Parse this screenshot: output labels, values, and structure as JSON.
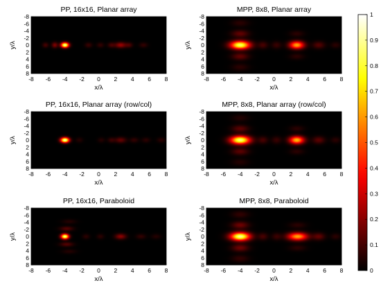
{
  "chart_data": {
    "type": "heatmap",
    "colormap": "hot",
    "colorbar": {
      "range": [
        0,
        1
      ],
      "ticks": [
        "0",
        "0.1",
        "0.2",
        "0.3",
        "0.4",
        "0.5",
        "0.6",
        "0.7",
        "0.8",
        "0.9",
        "1"
      ],
      "placement": "right"
    },
    "panels": [
      {
        "title": "PP, 16x16, Planar array",
        "xlabel": "x/λ",
        "ylabel": "y/λ",
        "xlim": [
          -8,
          8
        ],
        "ylim": [
          -8,
          8
        ],
        "y_reversed": true,
        "xticks": [
          "-8",
          "-6",
          "-4",
          "-2",
          "0",
          "2",
          "4",
          "6",
          "8"
        ],
        "yticks": [
          "-8",
          "-6",
          "-4",
          "-2",
          "0",
          "2",
          "4",
          "6",
          "8"
        ],
        "blobs": [
          {
            "x": -4,
            "y": 0,
            "amp": 0.92,
            "sx": 0.32,
            "sy": 0.5
          },
          {
            "x": -5.2,
            "y": 0,
            "amp": 0.18,
            "sx": 0.25,
            "sy": 0.55
          },
          {
            "x": -6.3,
            "y": 0,
            "amp": 0.1,
            "sx": 0.25,
            "sy": 0.5
          },
          {
            "x": -1.2,
            "y": 0,
            "amp": 0.08,
            "sx": 0.3,
            "sy": 0.5
          },
          {
            "x": 0.2,
            "y": 0,
            "amp": 0.07,
            "sx": 0.3,
            "sy": 0.5
          },
          {
            "x": 1.5,
            "y": 0,
            "amp": 0.1,
            "sx": 0.3,
            "sy": 0.5
          },
          {
            "x": 2.6,
            "y": 0,
            "amp": 0.22,
            "sx": 0.45,
            "sy": 0.55
          },
          {
            "x": 3.6,
            "y": 0,
            "amp": 0.1,
            "sx": 0.3,
            "sy": 0.5
          },
          {
            "x": 5.3,
            "y": 0,
            "amp": 0.07,
            "sx": 0.35,
            "sy": 0.5
          }
        ]
      },
      {
        "title": "MPP, 8x8, Planar array",
        "xlabel": "x/λ",
        "ylabel": "y/λ",
        "xlim": [
          -8,
          8
        ],
        "ylim": [
          -8,
          8
        ],
        "y_reversed": true,
        "xticks": [
          "-8",
          "-6",
          "-4",
          "-2",
          "0",
          "2",
          "4",
          "6",
          "8"
        ],
        "yticks": [
          "-8",
          "-6",
          "-4",
          "-2",
          "0",
          "2",
          "4",
          "6",
          "8"
        ],
        "blobs": [
          {
            "x": -4,
            "y": 0,
            "amp": 0.85,
            "sx": 0.8,
            "sy": 0.8
          },
          {
            "x": -4,
            "y": -3.2,
            "amp": 0.14,
            "sx": 0.7,
            "sy": 0.7
          },
          {
            "x": -4,
            "y": 3.2,
            "amp": 0.14,
            "sx": 0.7,
            "sy": 0.7
          },
          {
            "x": -4,
            "y": -6.2,
            "amp": 0.06,
            "sx": 0.7,
            "sy": 0.7
          },
          {
            "x": -4,
            "y": 6.2,
            "amp": 0.06,
            "sx": 0.7,
            "sy": 0.7
          },
          {
            "x": -1.3,
            "y": 0,
            "amp": 0.1,
            "sx": 0.4,
            "sy": 0.7
          },
          {
            "x": 0.3,
            "y": 0,
            "amp": 0.08,
            "sx": 0.4,
            "sy": 0.7
          },
          {
            "x": 2.7,
            "y": 0,
            "amp": 0.62,
            "sx": 0.6,
            "sy": 0.75
          },
          {
            "x": 2.7,
            "y": -3.2,
            "amp": 0.06,
            "sx": 0.6,
            "sy": 0.6
          },
          {
            "x": 2.7,
            "y": 3.2,
            "amp": 0.06,
            "sx": 0.6,
            "sy": 0.6
          },
          {
            "x": 5.3,
            "y": 0,
            "amp": 0.12,
            "sx": 0.5,
            "sy": 0.7
          },
          {
            "x": 7.3,
            "y": 0,
            "amp": 0.06,
            "sx": 0.4,
            "sy": 0.6
          }
        ]
      },
      {
        "title": "PP, 16x16, Planar array (row/col)",
        "xlabel": "x/λ",
        "ylabel": "y/λ",
        "xlim": [
          -8,
          8
        ],
        "ylim": [
          -8,
          8
        ],
        "y_reversed": true,
        "xticks": [
          "-8",
          "-6",
          "-4",
          "-2",
          "0",
          "2",
          "4",
          "6",
          "8"
        ],
        "yticks": [
          "-8",
          "-6",
          "-4",
          "-2",
          "0",
          "2",
          "4",
          "6",
          "8"
        ],
        "blobs": [
          {
            "x": -4,
            "y": 0,
            "amp": 0.95,
            "sx": 0.35,
            "sy": 0.5
          },
          {
            "x": -2.3,
            "y": 0,
            "amp": 0.05,
            "sx": 0.3,
            "sy": 0.5
          },
          {
            "x": 0.3,
            "y": 0,
            "amp": 0.05,
            "sx": 0.3,
            "sy": 0.5
          },
          {
            "x": 1.5,
            "y": 0,
            "amp": 0.08,
            "sx": 0.3,
            "sy": 0.5
          },
          {
            "x": 2.6,
            "y": 0,
            "amp": 0.14,
            "sx": 0.45,
            "sy": 0.55
          },
          {
            "x": 4.2,
            "y": 0,
            "amp": 0.07,
            "sx": 0.35,
            "sy": 0.5
          },
          {
            "x": 5.6,
            "y": 0,
            "amp": 0.06,
            "sx": 0.35,
            "sy": 0.5
          },
          {
            "x": 7.4,
            "y": 0,
            "amp": 0.06,
            "sx": 0.35,
            "sy": 0.5
          }
        ]
      },
      {
        "title": "MPP, 8x8, Planar array (row/col)",
        "xlabel": "x/λ",
        "ylabel": "y/λ",
        "xlim": [
          -8,
          8
        ],
        "ylim": [
          -8,
          8
        ],
        "y_reversed": true,
        "xticks": [
          "-8",
          "-6",
          "-4",
          "-2",
          "0",
          "2",
          "4",
          "6",
          "8"
        ],
        "yticks": [
          "-8",
          "-6",
          "-4",
          "-2",
          "0",
          "2",
          "4",
          "6",
          "8"
        ],
        "blobs": [
          {
            "x": -4,
            "y": 0,
            "amp": 0.88,
            "sx": 0.8,
            "sy": 0.8
          },
          {
            "x": -4,
            "y": -3.2,
            "amp": 0.13,
            "sx": 0.7,
            "sy": 0.7
          },
          {
            "x": -4,
            "y": 3.2,
            "amp": 0.13,
            "sx": 0.7,
            "sy": 0.7
          },
          {
            "x": -4,
            "y": -6.2,
            "amp": 0.05,
            "sx": 0.7,
            "sy": 0.7
          },
          {
            "x": -4,
            "y": 6.2,
            "amp": 0.05,
            "sx": 0.7,
            "sy": 0.7
          },
          {
            "x": -1.3,
            "y": 0,
            "amp": 0.1,
            "sx": 0.4,
            "sy": 0.7
          },
          {
            "x": 0.3,
            "y": 0,
            "amp": 0.08,
            "sx": 0.4,
            "sy": 0.7
          },
          {
            "x": 2.7,
            "y": 0,
            "amp": 0.66,
            "sx": 0.6,
            "sy": 0.75
          },
          {
            "x": 2.7,
            "y": -3.2,
            "amp": 0.06,
            "sx": 0.6,
            "sy": 0.6
          },
          {
            "x": 2.7,
            "y": 3.2,
            "amp": 0.06,
            "sx": 0.6,
            "sy": 0.6
          },
          {
            "x": 5.3,
            "y": 0,
            "amp": 0.13,
            "sx": 0.5,
            "sy": 0.7
          },
          {
            "x": 7.3,
            "y": 0,
            "amp": 0.06,
            "sx": 0.4,
            "sy": 0.6
          }
        ]
      },
      {
        "title": "PP, 16x16, Paraboloid",
        "xlabel": "x/λ",
        "ylabel": "y/λ",
        "xlim": [
          -8,
          8
        ],
        "ylim": [
          -8,
          8
        ],
        "y_reversed": true,
        "xticks": [
          "-8",
          "-6",
          "-4",
          "-2",
          "0",
          "2",
          "4",
          "6",
          "8"
        ],
        "yticks": [
          "-8",
          "-6",
          "-4",
          "-2",
          "0",
          "2",
          "4",
          "6",
          "8"
        ],
        "blobs": [
          {
            "x": -4,
            "y": 0,
            "amp": 0.9,
            "sx": 0.32,
            "sy": 0.5
          },
          {
            "x": -3.8,
            "y": -2.2,
            "amp": 0.12,
            "sx": 0.55,
            "sy": 0.45
          },
          {
            "x": -3.8,
            "y": 2.2,
            "amp": 0.12,
            "sx": 0.55,
            "sy": 0.45
          },
          {
            "x": -3.5,
            "y": -4.2,
            "amp": 0.05,
            "sx": 0.6,
            "sy": 0.45
          },
          {
            "x": -3.5,
            "y": 4.2,
            "amp": 0.05,
            "sx": 0.6,
            "sy": 0.45
          },
          {
            "x": -1.5,
            "y": 0,
            "amp": 0.06,
            "sx": 0.3,
            "sy": 0.5
          },
          {
            "x": 0.2,
            "y": 0,
            "amp": 0.06,
            "sx": 0.3,
            "sy": 0.5
          },
          {
            "x": 2.6,
            "y": 0,
            "amp": 0.2,
            "sx": 0.45,
            "sy": 0.55
          },
          {
            "x": 5.0,
            "y": 0,
            "amp": 0.07,
            "sx": 0.4,
            "sy": 0.5
          },
          {
            "x": 6.8,
            "y": 0,
            "amp": 0.05,
            "sx": 0.4,
            "sy": 0.5
          }
        ]
      },
      {
        "title": "MPP, 8x8, Paraboloid",
        "xlabel": "x/λ",
        "ylabel": "y/λ",
        "xlim": [
          -8,
          8
        ],
        "ylim": [
          -8,
          8
        ],
        "y_reversed": true,
        "xticks": [
          "-8",
          "-6",
          "-4",
          "-2",
          "0",
          "2",
          "4",
          "6",
          "8"
        ],
        "yticks": [
          "-8",
          "-6",
          "-4",
          "-2",
          "0",
          "2",
          "4",
          "6",
          "8"
        ],
        "blobs": [
          {
            "x": -4,
            "y": 0,
            "amp": 0.9,
            "sx": 0.8,
            "sy": 0.8
          },
          {
            "x": -4,
            "y": -3.2,
            "amp": 0.16,
            "sx": 0.7,
            "sy": 0.7
          },
          {
            "x": -4,
            "y": 3.2,
            "amp": 0.16,
            "sx": 0.7,
            "sy": 0.7
          },
          {
            "x": -4,
            "y": -6.2,
            "amp": 0.07,
            "sx": 0.7,
            "sy": 0.7
          },
          {
            "x": -4,
            "y": 6.2,
            "amp": 0.07,
            "sx": 0.7,
            "sy": 0.7
          },
          {
            "x": -1.3,
            "y": 0,
            "amp": 0.1,
            "sx": 0.4,
            "sy": 0.7
          },
          {
            "x": 0.3,
            "y": 0,
            "amp": 0.08,
            "sx": 0.4,
            "sy": 0.7
          },
          {
            "x": 2.8,
            "y": 0,
            "amp": 0.62,
            "sx": 0.8,
            "sy": 0.75
          },
          {
            "x": 2.8,
            "y": -3.2,
            "amp": 0.06,
            "sx": 0.7,
            "sy": 0.6
          },
          {
            "x": 2.8,
            "y": 3.2,
            "amp": 0.06,
            "sx": 0.7,
            "sy": 0.6
          },
          {
            "x": 5.3,
            "y": 0,
            "amp": 0.14,
            "sx": 0.5,
            "sy": 0.7
          },
          {
            "x": 7.3,
            "y": 0,
            "amp": 0.06,
            "sx": 0.4,
            "sy": 0.6
          }
        ]
      }
    ]
  }
}
